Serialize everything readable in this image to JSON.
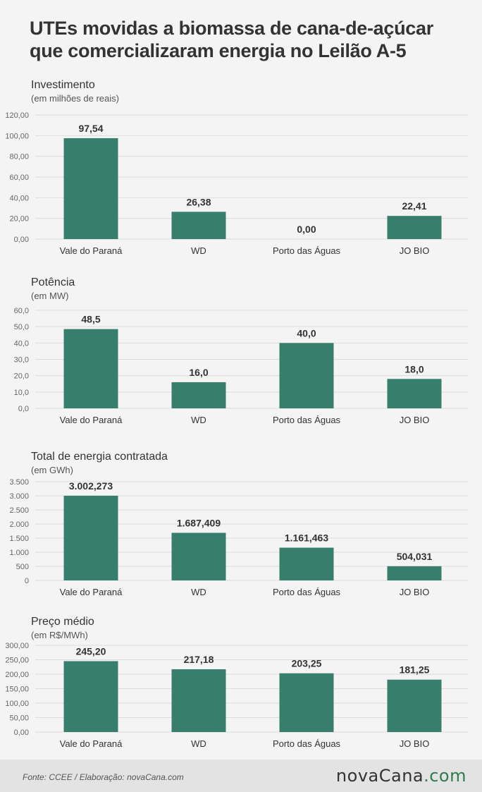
{
  "header": {
    "title_line1": "UTEs movidas a biomassa de cana-de-açúcar",
    "title_line2": "que comercializaram energia no Leilão A-5"
  },
  "colors": {
    "bar": "#387e6d",
    "grid": "#dcdcdc",
    "axis_text": "#666666",
    "label": "#333333"
  },
  "chart_data": [
    {
      "type": "bar",
      "title": "Investimento",
      "subtitle": "(em milhões de reais)",
      "categories": [
        "Vale do Paraná",
        "WD",
        "Porto das Águas",
        "JO BIO"
      ],
      "values": [
        97.54,
        26.38,
        0.0,
        22.41
      ],
      "value_labels": [
        "97,54",
        "26,38",
        "0,00",
        "22,41"
      ],
      "ylim": [
        0,
        120
      ],
      "yticks": [
        0,
        20,
        40,
        60,
        80,
        100,
        120
      ],
      "ytick_labels": [
        "0,00",
        "20,00",
        "40,00",
        "60,00",
        "80,00",
        "100,00",
        "120,00"
      ],
      "grid": true
    },
    {
      "type": "bar",
      "title": "Potência",
      "subtitle": "(em MW)",
      "categories": [
        "Vale do Paraná",
        "WD",
        "Porto das Águas",
        "JO BIO"
      ],
      "values": [
        48.5,
        16.0,
        40.0,
        18.0
      ],
      "value_labels": [
        "48,5",
        "16,0",
        "40,0",
        "18,0"
      ],
      "ylim": [
        0,
        60
      ],
      "yticks": [
        0,
        10,
        20,
        30,
        40,
        50,
        60
      ],
      "ytick_labels": [
        "0,0",
        "10,0",
        "20,0",
        "30,0",
        "40,0",
        "50,0",
        "60,0"
      ],
      "grid": true
    },
    {
      "type": "bar",
      "title": "Total de energia contratada",
      "subtitle": "(em GWh)",
      "categories": [
        "Vale do Paraná",
        "WD",
        "Porto das Águas",
        "JO BIO"
      ],
      "values": [
        3002.273,
        1687.409,
        1161.463,
        504.031
      ],
      "value_labels": [
        "3.002,273",
        "1.687,409",
        "1.161,463",
        "504,031"
      ],
      "ylim": [
        0,
        3500
      ],
      "yticks": [
        0,
        500,
        1000,
        1500,
        2000,
        2500,
        3000,
        3500
      ],
      "ytick_labels": [
        "0",
        "500",
        "1.000",
        "1.500",
        "2.000",
        "2.500",
        "3.000",
        "3.500"
      ],
      "grid": true
    },
    {
      "type": "bar",
      "title": "Preço médio",
      "subtitle": "(em R$/MWh)",
      "categories": [
        "Vale do Paraná",
        "WD",
        "Porto das Águas",
        "JO BIO"
      ],
      "values": [
        245.2,
        217.18,
        203.25,
        181.25
      ],
      "value_labels": [
        "245,20",
        "217,18",
        "203,25",
        "181,25"
      ],
      "ylim": [
        0,
        300
      ],
      "yticks": [
        0,
        50,
        100,
        150,
        200,
        250,
        300
      ],
      "ytick_labels": [
        "0,00",
        "50,00",
        "100,00",
        "150,00",
        "200,00",
        "250,00",
        "300,00"
      ],
      "grid": true
    }
  ],
  "footer": {
    "source": "Fonte:  CCEE  / Elaboração:  novaCana.com",
    "logo_part1": "novaCana",
    "logo_part2": ".com"
  }
}
